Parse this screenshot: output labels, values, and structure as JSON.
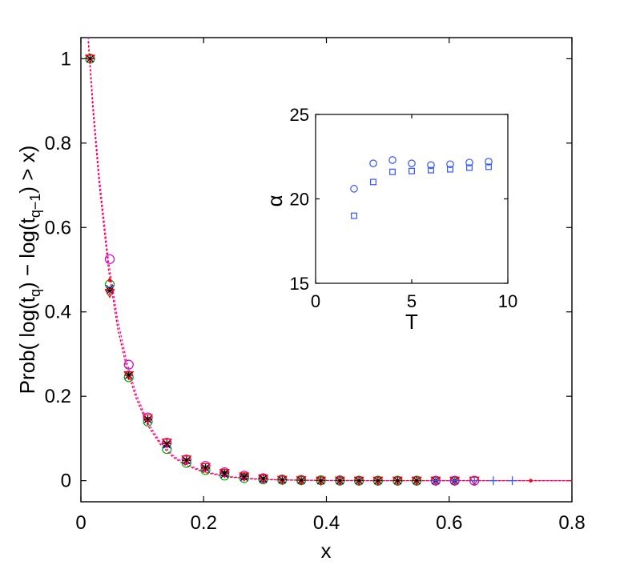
{
  "chart_data": [
    {
      "type": "scatter",
      "panel": "main",
      "xlabel": "x",
      "ylabel_parts": {
        "prefix": "Prob( log(t",
        "sub1": "q",
        "middle": ") − log(t",
        "sub2": "q−1",
        "suffix": ") > x)"
      },
      "xlim": [
        0,
        0.8
      ],
      "ylim": [
        -0.05,
        1.05
      ],
      "xticks": [
        0,
        0.2,
        0.4,
        0.6,
        0.8
      ],
      "xtick_labels": [
        "0",
        "0.2",
        "0.4",
        "0.6",
        "0.8"
      ],
      "yticks": [
        0,
        0.2,
        0.4,
        0.6,
        0.8,
        1
      ],
      "ytick_labels": [
        "0",
        "0.2",
        "0.4",
        "0.6",
        "0.8",
        "1"
      ],
      "grid": false,
      "fit_curves": [
        {
          "color": "#ff00ff",
          "style": "dotted",
          "x": [
            0.012,
            0.02,
            0.03,
            0.045,
            0.06,
            0.075,
            0.09,
            0.11,
            0.13,
            0.15,
            0.17,
            0.2,
            0.24,
            0.28,
            0.32,
            0.36,
            0.4,
            0.45,
            0.5,
            0.55,
            0.6,
            0.65,
            0.7,
            0.75,
            0.8
          ],
          "y": [
            1.05,
            0.89,
            0.72,
            0.52,
            0.38,
            0.28,
            0.205,
            0.135,
            0.09,
            0.06,
            0.04,
            0.022,
            0.01,
            0.005,
            0.002,
            0.001,
            0.0005,
            0.0002,
            0.0001,
            5e-05,
            2e-05,
            1e-05,
            0,
            0,
            0
          ]
        },
        {
          "color": "#ff0000",
          "style": "dotted",
          "x": [
            0.012,
            0.02,
            0.03,
            0.045,
            0.06,
            0.075,
            0.09,
            0.11,
            0.13,
            0.15,
            0.17,
            0.2,
            0.24,
            0.28,
            0.32,
            0.36,
            0.4,
            0.45,
            0.5,
            0.55,
            0.6,
            0.65,
            0.7,
            0.75,
            0.8
          ],
          "y": [
            1.04,
            0.87,
            0.7,
            0.5,
            0.36,
            0.265,
            0.195,
            0.128,
            0.085,
            0.056,
            0.037,
            0.02,
            0.009,
            0.004,
            0.002,
            0.001,
            0.0004,
            0.0002,
            0.0001,
            4e-05,
            2e-05,
            1e-05,
            0,
            0,
            0
          ]
        }
      ],
      "series": [
        {
          "marker": "circle",
          "color": "#cc00cc",
          "x": [
            0.015,
            0.047,
            0.078,
            0.109,
            0.14,
            0.172,
            0.203,
            0.234,
            0.266,
            0.297,
            0.328,
            0.359,
            0.391,
            0.422,
            0.453,
            0.484,
            0.516,
            0.547,
            0.578,
            0.609,
            0.641
          ],
          "y": [
            1.0,
            0.525,
            0.275,
            0.15,
            0.09,
            0.05,
            0.035,
            0.02,
            0.012,
            0.006,
            0.003,
            0.002,
            0.001,
            0.001,
            0.0,
            0.0,
            0.0,
            0.0,
            0.0,
            0.0,
            0.0
          ]
        },
        {
          "marker": "circle",
          "color": "#00aa00",
          "x": [
            0.015,
            0.047,
            0.078,
            0.109,
            0.14,
            0.172,
            0.203,
            0.234,
            0.266,
            0.297,
            0.328,
            0.359,
            0.391,
            0.422,
            0.453,
            0.484,
            0.516,
            0.547
          ],
          "y": [
            1.0,
            0.465,
            0.245,
            0.14,
            0.075,
            0.042,
            0.025,
            0.012,
            0.006,
            0.003,
            0.002,
            0.001,
            0.001,
            0.0,
            0.0,
            0.0,
            0.0,
            0.0
          ]
        },
        {
          "marker": "x",
          "color": "#0000cc",
          "x": [
            0.015,
            0.047,
            0.078,
            0.109,
            0.14,
            0.172,
            0.203,
            0.234,
            0.266,
            0.297,
            0.328,
            0.359,
            0.391,
            0.422,
            0.453,
            0.484,
            0.516,
            0.547,
            0.578,
            0.609
          ],
          "y": [
            1.0,
            0.455,
            0.25,
            0.145,
            0.085,
            0.048,
            0.03,
            0.015,
            0.008,
            0.004,
            0.002,
            0.001,
            0.0,
            0.0,
            0.0,
            0.0,
            0.0,
            0.0,
            0.0,
            0.0
          ]
        },
        {
          "marker": "star",
          "color": "#000000",
          "x": [
            0.015,
            0.047,
            0.078,
            0.109,
            0.14,
            0.172,
            0.203,
            0.234,
            0.266,
            0.297,
            0.328,
            0.359,
            0.391,
            0.422,
            0.453,
            0.484,
            0.516,
            0.547,
            0.578,
            0.609
          ],
          "y": [
            1.0,
            0.45,
            0.25,
            0.145,
            0.088,
            0.048,
            0.03,
            0.018,
            0.01,
            0.005,
            0.002,
            0.001,
            0.0,
            0.0,
            0.0,
            0.0,
            0.0,
            0.0,
            0.0,
            0.0
          ]
        },
        {
          "marker": "triangle",
          "color": "#ff0000",
          "x": [
            0.015,
            0.047,
            0.078,
            0.109,
            0.14,
            0.172,
            0.203,
            0.234,
            0.266,
            0.297,
            0.328,
            0.359,
            0.391,
            0.422,
            0.453,
            0.484,
            0.516,
            0.547,
            0.578,
            0.609,
            0.641
          ],
          "y": [
            1.0,
            0.445,
            0.25,
            0.148,
            0.09,
            0.05,
            0.032,
            0.018,
            0.01,
            0.005,
            0.002,
            0.001,
            0.0,
            0.0,
            0.0,
            0.0,
            0.0,
            0.0,
            0.0,
            0.0,
            0.0
          ]
        },
        {
          "marker": "plus",
          "color": "#3355ff",
          "x": [
            0.578,
            0.609,
            0.641,
            0.672,
            0.703
          ],
          "y": [
            0.0,
            0.0,
            0.0,
            0.0,
            0.0
          ]
        },
        {
          "marker": "dot",
          "color": "#ff0000",
          "x": [
            0.047,
            0.733
          ],
          "y": [
            0.475,
            0.0
          ]
        }
      ]
    },
    {
      "type": "scatter",
      "panel": "inset",
      "xlabel": "T",
      "ylabel": "α",
      "xlim": [
        0,
        10
      ],
      "ylim": [
        15,
        25
      ],
      "xticks": [
        0,
        5,
        10
      ],
      "xtick_labels": [
        "0",
        "5",
        "10"
      ],
      "yticks": [
        15,
        20,
        25
      ],
      "ytick_labels": [
        "15",
        "20",
        "25"
      ],
      "grid": false,
      "series": [
        {
          "marker": "circle",
          "color": "#3355ff",
          "x": [
            2,
            3,
            4,
            5,
            6,
            7,
            8,
            9
          ],
          "y": [
            20.6,
            22.1,
            22.3,
            22.1,
            22.0,
            22.05,
            22.15,
            22.2
          ]
        },
        {
          "marker": "square",
          "color": "#3355ff",
          "x": [
            2,
            3,
            4,
            5,
            6,
            7,
            8,
            9
          ],
          "y": [
            19.0,
            21.0,
            21.6,
            21.65,
            21.7,
            21.75,
            21.85,
            21.9
          ]
        }
      ]
    }
  ]
}
